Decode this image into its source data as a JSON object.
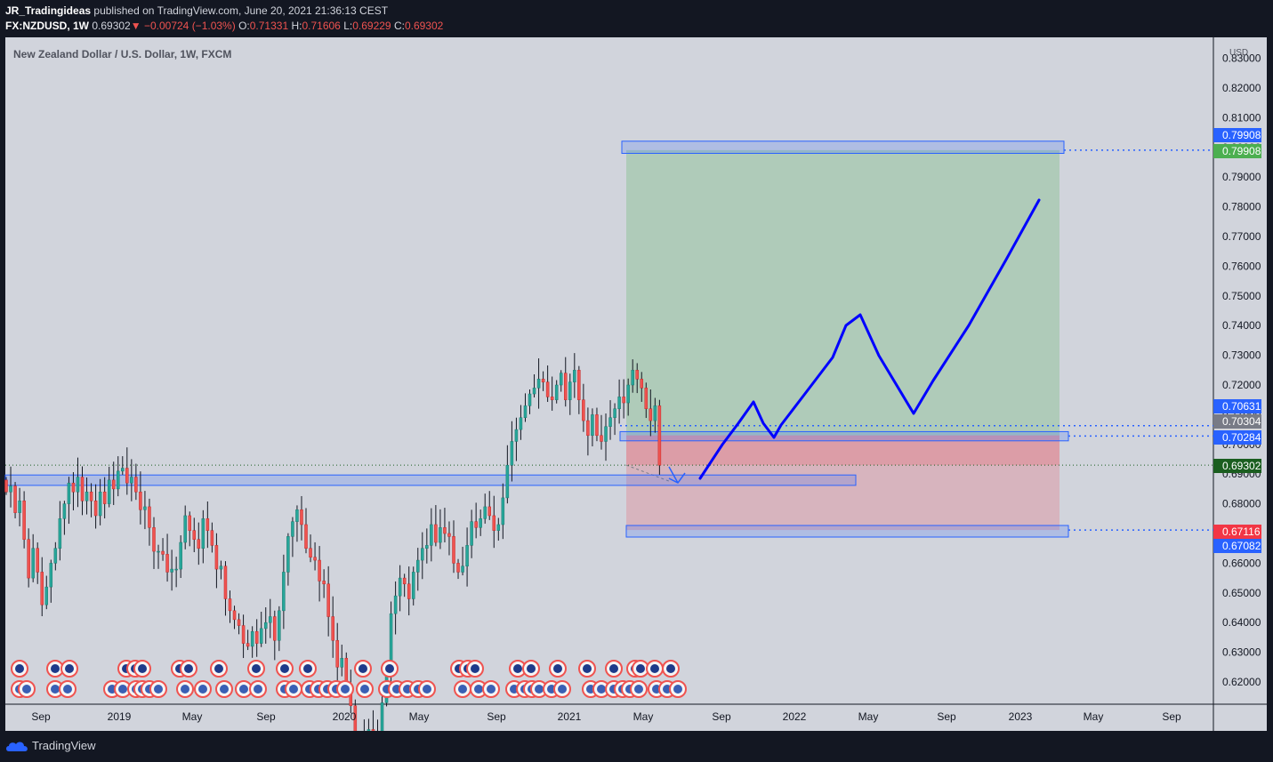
{
  "header": {
    "author": "JR_Tradingideas",
    "published_text": "published on TradingView.com, June 20, 2021 21:36:13 CEST",
    "symbol": "FX:NZDUSD, 1W",
    "last": "0.69302",
    "change": "−0.00724 (−1.03%)",
    "open_label": "O:",
    "open": "0.71331",
    "high_label": "H:",
    "high": "0.71606",
    "low_label": "L:",
    "low": "0.69229",
    "close_label": "C:",
    "close": "0.69302"
  },
  "legend_title": "New Zealand Dollar / U.S. Dollar, 1W, FXCM",
  "currency": "USD",
  "footer": {
    "brand": "TradingView"
  },
  "chart_data": {
    "type": "candlestick",
    "title": "New Zealand Dollar / U.S. Dollar, 1W, FXCM",
    "y_unit": "USD",
    "ylim": [
      0.6115,
      0.8345
    ],
    "y_ticks": [
      "0.62000",
      "0.63000",
      "0.64000",
      "0.65000",
      "0.66000",
      "0.67000",
      "0.68000",
      "0.69000",
      "0.70000",
      "0.71000",
      "0.72000",
      "0.73000",
      "0.74000",
      "0.75000",
      "0.76000",
      "0.77000",
      "0.78000",
      "0.79000",
      "0.80000",
      "0.81000",
      "0.82000",
      "0.83000"
    ],
    "x_ticks": [
      "Sep",
      "2019",
      "May",
      "Sep",
      "2020",
      "May",
      "Sep",
      "2021",
      "May",
      "Sep",
      "2022",
      "May",
      "Sep",
      "2023",
      "May",
      "Sep"
    ],
    "price_labels": [
      {
        "text": "0.79908",
        "color": "#2962ff",
        "y": 0.79908
      },
      {
        "text": "0.79908",
        "color": "#4caf50",
        "y": 0.79908
      },
      {
        "text": "0.70631",
        "color": "#2962ff",
        "y": 0.70631
      },
      {
        "text": "0.70304",
        "color": "#787b86",
        "y": 0.70304
      },
      {
        "text": "0.70284",
        "color": "#2962ff",
        "y": 0.70284
      },
      {
        "text": "0.69302",
        "color": "#1b5e20",
        "y": 0.69302
      },
      {
        "text": "0.67116",
        "color": "#f23645",
        "y": 0.67116
      },
      {
        "text": "0.67082",
        "color": "#2962ff",
        "y": 0.67082
      }
    ],
    "last_price": 0.69302,
    "position": {
      "entry": 0.70304,
      "target": 0.79908,
      "stop": 0.67116
    },
    "zones": [
      {
        "name": "target-zone",
        "y_top": 0.8021,
        "y_bottom": 0.798
      },
      {
        "name": "entry-zone",
        "y_top": 0.7043,
        "y_bottom": 0.7012
      },
      {
        "name": "support-zone",
        "y_top": 0.6897,
        "y_bottom": 0.6862
      },
      {
        "name": "stop-zone",
        "y_top": 0.6727,
        "y_bottom": 0.6688
      }
    ],
    "forecast_path": [
      [
        0.689,
        0.688
      ],
      [
        0.7035,
        0.707
      ],
      [
        0.714,
        0.715
      ],
      [
        0.708,
        0.702
      ],
      [
        0.713,
        0.719
      ],
      [
        0.734,
        0.744
      ],
      [
        0.742,
        0.731
      ],
      [
        0.718,
        0.712
      ],
      [
        0.721,
        0.738
      ],
      [
        0.759,
        0.782
      ]
    ],
    "candle_count": 147,
    "candles_shown_as": "weekly OHLC, approximate from chart",
    "seed_closes": [
      0.684,
      0.686,
      0.677,
      0.681,
      0.668,
      0.655,
      0.665,
      0.657,
      0.646,
      0.652,
      0.66,
      0.665,
      0.675,
      0.68,
      0.687,
      0.684,
      0.689,
      0.681,
      0.684,
      0.681,
      0.676,
      0.684,
      0.68,
      0.688,
      0.685,
      0.691,
      0.692,
      0.687,
      0.689,
      0.684,
      0.678,
      0.679,
      0.672,
      0.664,
      0.664,
      0.663,
      0.657,
      0.658,
      0.658,
      0.667,
      0.676,
      0.671,
      0.668,
      0.665,
      0.675,
      0.671,
      0.666,
      0.658,
      0.659,
      0.648,
      0.644,
      0.641,
      0.639,
      0.633,
      0.632,
      0.637,
      0.633,
      0.638,
      0.64,
      0.642,
      0.634,
      0.644,
      0.657,
      0.669,
      0.674,
      0.678,
      0.673,
      0.665,
      0.662,
      0.661,
      0.654,
      0.653,
      0.642,
      0.634,
      0.625,
      0.628,
      0.619,
      0.612,
      0.598,
      0.597,
      0.602,
      0.604,
      0.598,
      0.602,
      0.613,
      0.622,
      0.643,
      0.649,
      0.655,
      0.653,
      0.648,
      0.657,
      0.661,
      0.665,
      0.666,
      0.673,
      0.667,
      0.672,
      0.67,
      0.669,
      0.66,
      0.657,
      0.659,
      0.666,
      0.674,
      0.672,
      0.675,
      0.679,
      0.676,
      0.671,
      0.673,
      0.682,
      0.693,
      0.701,
      0.705,
      0.709,
      0.713,
      0.717,
      0.719,
      0.722,
      0.721,
      0.716,
      0.715,
      0.72,
      0.724,
      0.715,
      0.721,
      0.725,
      0.715,
      0.708,
      0.703,
      0.71,
      0.703,
      0.701,
      0.706,
      0.709,
      0.712,
      0.716,
      0.714,
      0.72,
      0.725,
      0.722,
      0.719,
      0.712,
      0.708,
      0.713,
      0.693
    ]
  }
}
